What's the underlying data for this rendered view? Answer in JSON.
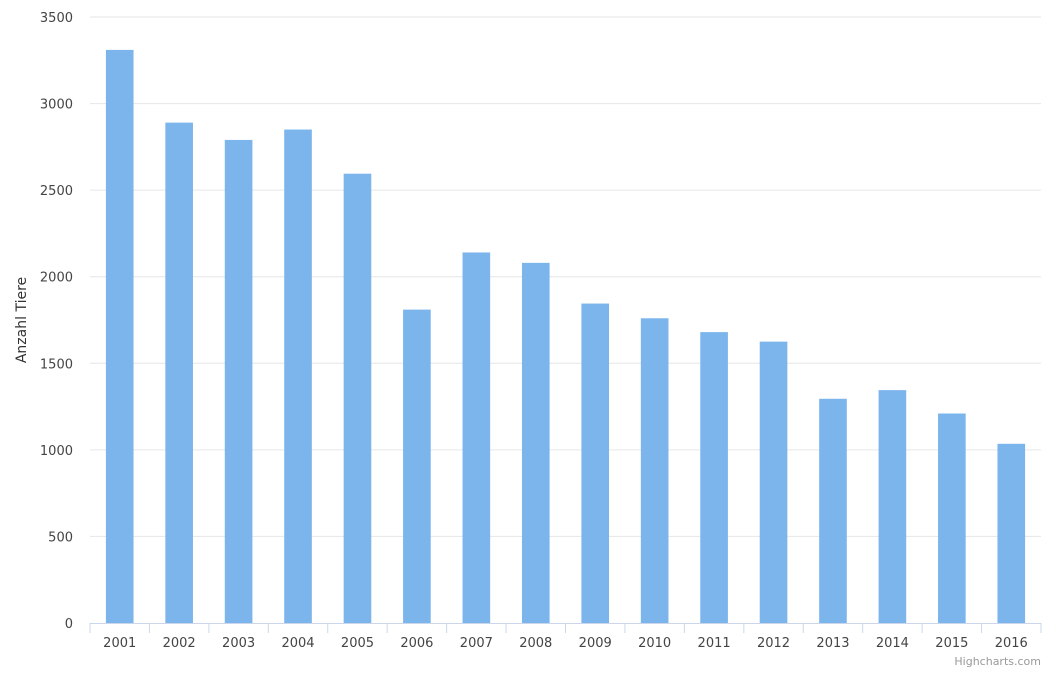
{
  "chart_data": {
    "type": "bar",
    "title": "",
    "xlabel": "",
    "ylabel": "Anzahl Tiere",
    "categories": [
      "2001",
      "2002",
      "2003",
      "2004",
      "2005",
      "2006",
      "2007",
      "2008",
      "2009",
      "2010",
      "2011",
      "2012",
      "2013",
      "2014",
      "2015",
      "2016"
    ],
    "series": [
      {
        "values": [
          3310,
          2890,
          2790,
          2850,
          2595,
          1810,
          2140,
          2080,
          1845,
          1760,
          1680,
          1625,
          1295,
          1345,
          1210,
          1035
        ]
      }
    ],
    "ylim": [
      0,
      3500
    ],
    "yticks": [
      0,
      500,
      1000,
      1500,
      2000,
      2500,
      3000,
      3500
    ],
    "grid": true,
    "legend": "none",
    "colors": {
      "bar": "#7cb5ec",
      "grid": "#e6e6e6",
      "axis": "#ccd6eb",
      "text": "#444444"
    }
  },
  "credits": "Highcharts.com"
}
